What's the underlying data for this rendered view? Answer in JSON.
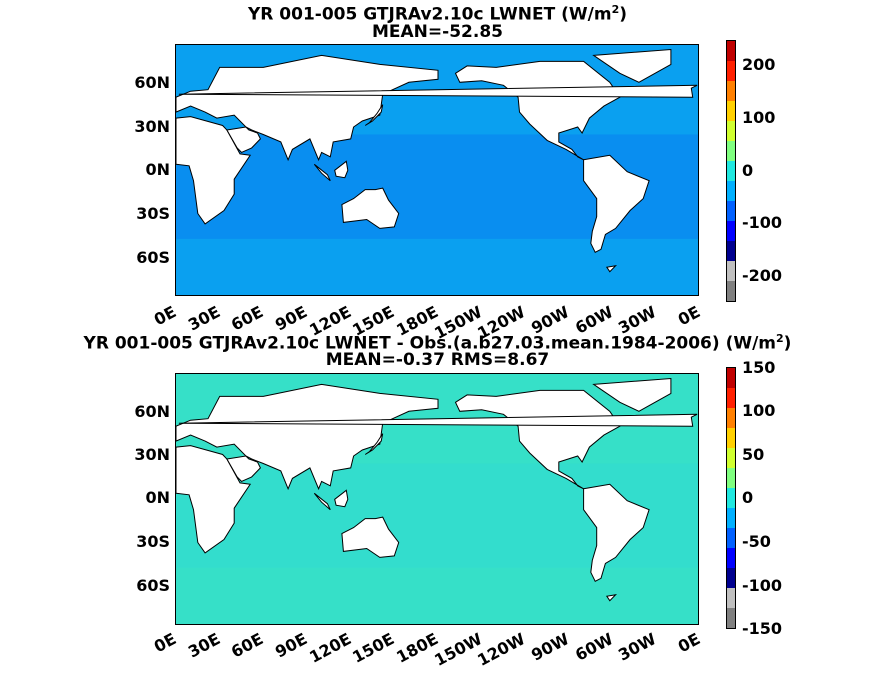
{
  "panels": [
    {
      "title_prefix": "YR 001-005 GTJRAv2.10c  LWNET (W/m",
      "title_sup": "2",
      "title_suffix": ")",
      "stats": "MEAN=-52.85",
      "ocean_color": "#0aa0f0",
      "colorbar_ticks": [
        "200",
        "100",
        "0",
        "-100",
        "-200"
      ]
    },
    {
      "title_prefix": "YR 001-005 GTJRAv2.10c LWNET - Obs.(a.b27.03.mean.1984-2006) (W/m",
      "title_sup": "2",
      "title_suffix": ")",
      "stats": "MEAN=-0.37 RMS=8.67",
      "ocean_color": "#36e0c8",
      "colorbar_ticks": [
        "150",
        "100",
        "50",
        "0",
        "-50",
        "-100",
        "-150"
      ]
    }
  ],
  "lat_labels": [
    "60N",
    "30N",
    "0N",
    "30S",
    "60S"
  ],
  "lon_labels": [
    "0E",
    "30E",
    "60E",
    "90E",
    "120E",
    "150E",
    "180E",
    "150W",
    "120W",
    "90W",
    "60W",
    "30W",
    "0E"
  ],
  "colormap": [
    "#808080",
    "#c0c0c0",
    "#00008f",
    "#0000ff",
    "#0060ff",
    "#00b0ff",
    "#20e8e0",
    "#80ff80",
    "#d0ff30",
    "#ffd000",
    "#ff8000",
    "#ff2000",
    "#c00000"
  ]
}
